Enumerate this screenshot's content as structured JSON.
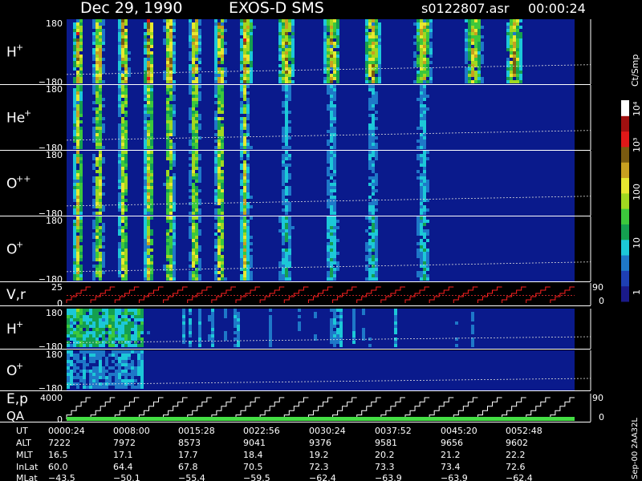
{
  "header": {
    "date": "Dec 29, 1990",
    "instrument": "EXOS-D SMS",
    "file": "s0122807.asr",
    "time": "00:00:24"
  },
  "chart_data": {
    "type": "heatmap",
    "panels": [
      {
        "id": "h-plus-1",
        "label": "H",
        "sup": "+",
        "ytop": "180",
        "ybot": "−180",
        "kind": "spectrogram",
        "intensity": 1.0,
        "tail": 0.85
      },
      {
        "id": "he-plus",
        "label": "He",
        "sup": "+",
        "ytop": "180",
        "ybot": "−180",
        "kind": "spectrogram",
        "intensity": 0.75,
        "tail": 0.35
      },
      {
        "id": "o-plus-plus",
        "label": "O",
        "sup": "++",
        "ytop": "180",
        "ybot": "−180",
        "kind": "spectrogram",
        "intensity": 0.8,
        "tail": 0.35
      },
      {
        "id": "o-plus-1",
        "label": "O",
        "sup": "+",
        "ytop": "180",
        "ybot": "−180",
        "kind": "spectrogram",
        "intensity": 0.8,
        "tail": 0.45
      },
      {
        "id": "v-r",
        "label": "V,r",
        "sup": "",
        "ytop": "25",
        "ybot": "0",
        "kind": "steps",
        "right_top": "90",
        "right_bot": "0",
        "color": "#ff2020"
      },
      {
        "id": "h-plus-2",
        "label": "H",
        "sup": "+",
        "ytop": "180",
        "ybot": "−180",
        "kind": "spectrogram2",
        "intensity": 0.7,
        "tail": 0.35
      },
      {
        "id": "o-plus-2",
        "label": "O",
        "sup": "+",
        "ytop": "180",
        "ybot": "−180",
        "kind": "spectrogram2",
        "intensity": 0.5,
        "tail": 0.15
      },
      {
        "id": "e-p-qa",
        "label": "E,p",
        "label2": "QA",
        "sup": "",
        "ytop": "4000",
        "ybot": "0",
        "kind": "stepsqa",
        "right_top": "90",
        "right_bot": "0",
        "color": "#ffffff"
      }
    ],
    "colorbar": {
      "unit": "Ct/Smp",
      "ticks": [
        "10⁴",
        "10³",
        "100",
        "10",
        "1"
      ]
    },
    "ephemeris": {
      "rows": [
        "UT",
        "ALT",
        "MLT",
        "InLat",
        "MLat"
      ],
      "columns": [
        [
          "0000:24",
          "7222",
          "16.5",
          "60.0",
          "−43.5"
        ],
        [
          "0008:00",
          "7972",
          "17.1",
          "64.4",
          "−50.1"
        ],
        [
          "0015:28",
          "8573",
          "17.7",
          "67.8",
          "−55.4"
        ],
        [
          "0022:56",
          "9041",
          "18.4",
          "70.5",
          "−59.5"
        ],
        [
          "0030:24",
          "9376",
          "19.2",
          "72.3",
          "−62.4"
        ],
        [
          "0037:52",
          "9581",
          "20.2",
          "73.3",
          "−63.9"
        ],
        [
          "0045:20",
          "9656",
          "21.2",
          "73.4",
          "−63.9"
        ],
        [
          "0052:48",
          "9602",
          "22.2",
          "72.6",
          "−62.4"
        ]
      ]
    },
    "footer_code": "Sep-00 2AA32L"
  },
  "colors": {
    "background": "#000000",
    "plot_base": "#0a1a8c",
    "scale": [
      "#1a1a8a",
      "#1e3fb4",
      "#1e78c8",
      "#1cc8d8",
      "#14a050",
      "#3cc83c",
      "#a0d820",
      "#e8e830",
      "#c8a020",
      "#7a5a10",
      "#e01818",
      "#a01010",
      "#ffffff"
    ]
  }
}
